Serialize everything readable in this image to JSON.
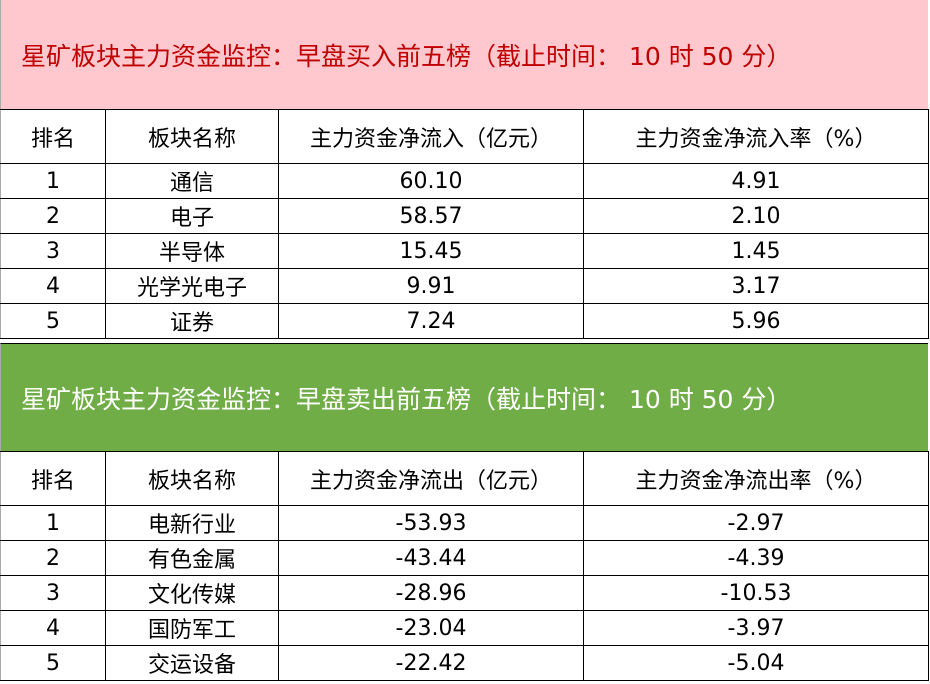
{
  "buy": {
    "title": "星矿板块主力资金监控：早盘买入前五榜（截止时间： 10 时 50 分）",
    "title_bg": "#FFC7CE",
    "title_color": "#C00000",
    "headers": [
      "排名",
      "板块名称",
      "主力资金净流入（亿元）",
      "主力资金净流入率（%）"
    ],
    "rows": [
      [
        "1",
        "通信",
        "60.10",
        "4.91"
      ],
      [
        "2",
        "电子",
        "58.57",
        "2.10"
      ],
      [
        "3",
        "半导体",
        "15.45",
        "1.45"
      ],
      [
        "4",
        "光学光电子",
        "9.91",
        "3.17"
      ],
      [
        "5",
        "证券",
        "7.24",
        "5.96"
      ]
    ]
  },
  "sell": {
    "title": "星矿板块主力资金监控：早盘卖出前五榜（截止时间： 10 时 50 分）",
    "title_bg": "#70AD47",
    "title_color": "#FFFFFF",
    "headers": [
      "排名",
      "板块名称",
      "主力资金净流出（亿元）",
      "主力资金净流出率（%）"
    ],
    "rows": [
      [
        "1",
        "电新行业",
        "-53.93",
        "-2.97"
      ],
      [
        "2",
        "有色金属",
        "-43.44",
        "-4.39"
      ],
      [
        "3",
        "文化传媒",
        "-28.96",
        "-10.53"
      ],
      [
        "4",
        "国防军工",
        "-23.04",
        "-3.97"
      ],
      [
        "5",
        "交运设备",
        "-22.42",
        "-5.04"
      ]
    ]
  }
}
